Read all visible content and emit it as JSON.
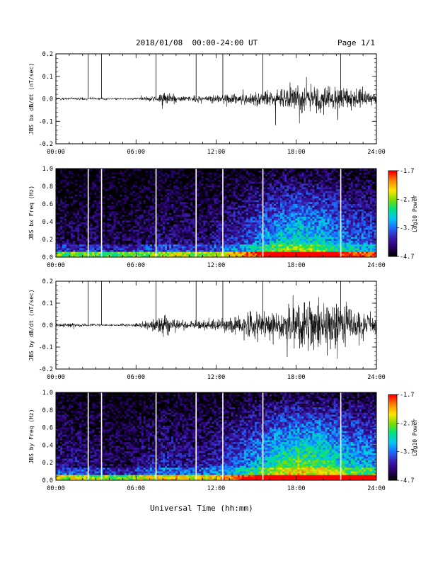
{
  "header": {
    "title": "2018/01/08  00:00-24:00 UT",
    "page": "Page 1/1"
  },
  "footer": {
    "xlabel": "Universal Time (hh:mm)"
  },
  "colors": {
    "trace": "#000000",
    "gap_lines": "#ffffff",
    "colormap": [
      "#000000",
      "#2a006e",
      "#3a1fb0",
      "#1a6cff",
      "#00c8f0",
      "#00e27a",
      "#7ddc00",
      "#ffe400",
      "#ff8a00",
      "#ff0000"
    ]
  },
  "chart_data": [
    {
      "type": "line",
      "ylabel": "JBS bx dB/dt (nT/sec)",
      "xlim": [
        0,
        24
      ],
      "ylim": [
        -0.2,
        0.2
      ],
      "x_ticks": [
        "00:00",
        "06:00",
        "12:00",
        "18:00",
        "24:00"
      ],
      "y_ticks": [
        "-0.2",
        "-0.1",
        "0.0",
        "0.1",
        "0.2"
      ],
      "gap_hours": [
        2.42,
        3.42,
        7.5,
        10.5,
        12.5,
        15.5,
        21.33
      ],
      "envelope": [
        {
          "x": 0,
          "amp": 0.008
        },
        {
          "x": 2,
          "amp": 0.008
        },
        {
          "x": 4,
          "amp": 0.006
        },
        {
          "x": 5.8,
          "amp": 0.007
        },
        {
          "x": 6.5,
          "amp": 0.012
        },
        {
          "x": 7.3,
          "amp": 0.02
        },
        {
          "x": 8.0,
          "amp": 0.04
        },
        {
          "x": 9.5,
          "amp": 0.018
        },
        {
          "x": 12,
          "amp": 0.025
        },
        {
          "x": 14,
          "amp": 0.035
        },
        {
          "x": 16,
          "amp": 0.05
        },
        {
          "x": 17,
          "amp": 0.06
        },
        {
          "x": 18.5,
          "amp": 0.085
        },
        {
          "x": 20,
          "amp": 0.09
        },
        {
          "x": 21.5,
          "amp": 0.07
        },
        {
          "x": 23,
          "amp": 0.05
        },
        {
          "x": 24,
          "amp": 0.04
        }
      ]
    },
    {
      "type": "heatmap",
      "ylabel": "JBS bx Freq (Hz)",
      "xlim": [
        0,
        24
      ],
      "ylim": [
        0,
        1.0
      ],
      "x_ticks": [
        "00:00",
        "06:00",
        "12:00",
        "18:00",
        "24:00"
      ],
      "y_ticks": [
        "0.0",
        "0.2",
        "0.4",
        "0.6",
        "0.8",
        "1.0"
      ],
      "gap_hours": [
        2.42,
        3.42,
        7.5,
        10.5,
        12.5,
        15.5,
        21.33
      ],
      "colorbar": {
        "label": "Log10 Power",
        "ticks": [
          "-1.7",
          "-2.7",
          "-3.7",
          "-4.7"
        ],
        "range": [
          -4.7,
          -1.7
        ]
      },
      "activity_profile": [
        {
          "x": 0,
          "level": 0.15
        },
        {
          "x": 2,
          "level": 0.18
        },
        {
          "x": 5,
          "level": 0.15
        },
        {
          "x": 8,
          "level": 0.22
        },
        {
          "x": 11,
          "level": 0.2
        },
        {
          "x": 14,
          "level": 0.35
        },
        {
          "x": 16,
          "level": 0.55
        },
        {
          "x": 18,
          "level": 0.65
        },
        {
          "x": 20,
          "level": 0.6
        },
        {
          "x": 22,
          "level": 0.45
        },
        {
          "x": 24,
          "level": 0.4
        }
      ]
    },
    {
      "type": "line",
      "ylabel": "JBS by dB/dt (nT/sec)",
      "xlim": [
        0,
        24
      ],
      "ylim": [
        -0.2,
        0.2
      ],
      "x_ticks": [
        "00:00",
        "06:00",
        "12:00",
        "18:00",
        "24:00"
      ],
      "y_ticks": [
        "-0.2",
        "-0.1",
        "0.0",
        "0.1",
        "0.2"
      ],
      "gap_hours": [
        2.42,
        3.42,
        7.5,
        10.5,
        12.5,
        15.5,
        21.33
      ],
      "envelope": [
        {
          "x": 0,
          "amp": 0.012
        },
        {
          "x": 2,
          "amp": 0.011
        },
        {
          "x": 4,
          "amp": 0.006
        },
        {
          "x": 5.8,
          "amp": 0.01
        },
        {
          "x": 6.5,
          "amp": 0.02
        },
        {
          "x": 7.5,
          "amp": 0.045
        },
        {
          "x": 8.0,
          "amp": 0.06
        },
        {
          "x": 9.5,
          "amp": 0.025
        },
        {
          "x": 12,
          "amp": 0.03
        },
        {
          "x": 13.5,
          "amp": 0.07
        },
        {
          "x": 15,
          "amp": 0.09
        },
        {
          "x": 17,
          "amp": 0.1
        },
        {
          "x": 18.5,
          "amp": 0.16
        },
        {
          "x": 20,
          "amp": 0.17
        },
        {
          "x": 21.5,
          "amp": 0.13
        },
        {
          "x": 23,
          "amp": 0.09
        },
        {
          "x": 24,
          "amp": 0.07
        }
      ]
    },
    {
      "type": "heatmap",
      "ylabel": "JBS by Freq (Hz)",
      "xlim": [
        0,
        24
      ],
      "ylim": [
        0,
        1.0
      ],
      "x_ticks": [
        "00:00",
        "06:00",
        "12:00",
        "18:00",
        "24:00"
      ],
      "y_ticks": [
        "0.0",
        "0.2",
        "0.4",
        "0.6",
        "0.8",
        "1.0"
      ],
      "gap_hours": [
        2.42,
        3.42,
        7.5,
        10.5,
        12.5,
        15.5,
        21.33
      ],
      "colorbar": {
        "label": "Log10 Power",
        "ticks": [
          "-1.7",
          "-2.7",
          "-3.7",
          "-4.7"
        ],
        "range": [
          -4.7,
          -1.7
        ]
      },
      "activity_profile": [
        {
          "x": 0,
          "level": 0.25
        },
        {
          "x": 2,
          "level": 0.22
        },
        {
          "x": 5,
          "level": 0.15
        },
        {
          "x": 8,
          "level": 0.3
        },
        {
          "x": 11,
          "level": 0.25
        },
        {
          "x": 14,
          "level": 0.45
        },
        {
          "x": 16,
          "level": 0.65
        },
        {
          "x": 18,
          "level": 0.78
        },
        {
          "x": 20,
          "level": 0.75
        },
        {
          "x": 22,
          "level": 0.6
        },
        {
          "x": 24,
          "level": 0.55
        }
      ]
    }
  ]
}
